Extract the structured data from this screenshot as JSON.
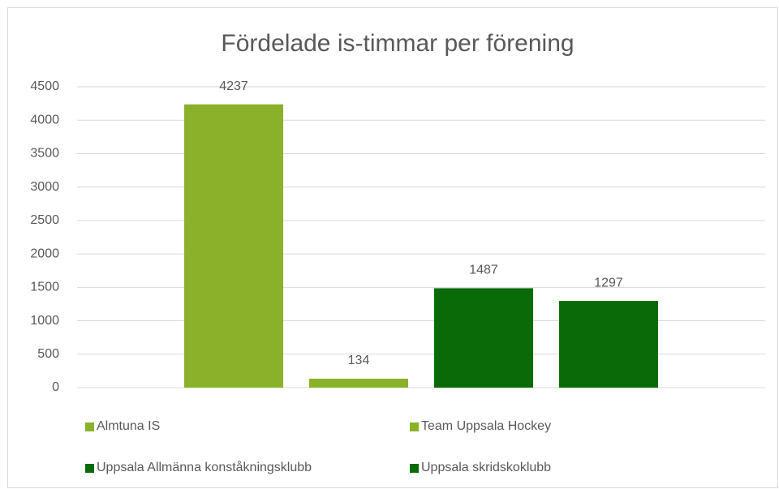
{
  "chart_data": {
    "type": "bar",
    "title": "Fördelade is-timmar per förening",
    "categories": [
      null
    ],
    "series": [
      {
        "name": "Almtuna IS",
        "color": "#8bb12a",
        "values": [
          4237
        ]
      },
      {
        "name": "Team Uppsala Hockey",
        "color": "#8bb12a",
        "values": [
          134
        ]
      },
      {
        "name": "Uppsala Allmänna konståkningsklubb",
        "color": "#086b08",
        "values": [
          1487
        ]
      },
      {
        "name": "Uppsala skridskoklubb",
        "color": "#086b08",
        "values": [
          1297
        ]
      }
    ],
    "ylim": [
      0,
      4500
    ],
    "yticks": [
      0,
      500,
      1000,
      1500,
      2000,
      2500,
      3000,
      3500,
      4000,
      4500
    ],
    "grid": true,
    "legend": "bottom"
  }
}
